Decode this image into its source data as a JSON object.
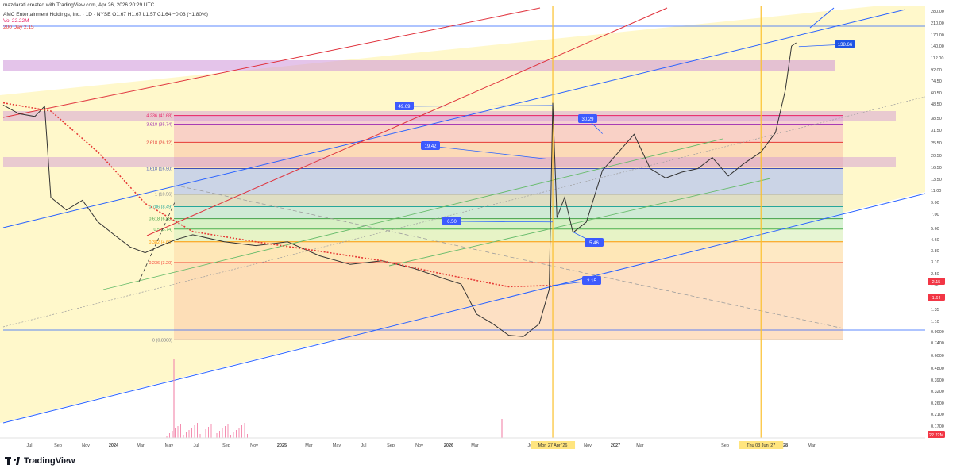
{
  "header": {
    "credit": "mazdarati created with TradingView.com, Apr 26, 2026 20:29 UTC",
    "symbol_line": "AMC Entertainment Holdings, Inc. · 1D · NYSE  O1.67 H1.67 L1.57 C1.64 −0.03 (−1.80%)",
    "vol_line": "Vol  22.22M",
    "ma_line": "200 Day  2.15"
  },
  "branding": {
    "name": "TradingView"
  },
  "colors": {
    "channel_blue": "#2962ff",
    "fib_red": "#e0323c",
    "price_line": "#333333",
    "ma_red": "#e53935",
    "highlight_yellow": "#fbc02d",
    "purple_band": "#ce93d8",
    "fill_yellow": "#fff7c2"
  },
  "chart_data": {
    "type": "line",
    "title": "AMC Entertainment Holdings, Inc. · 1D · NYSE",
    "y_scale": "log",
    "ylim": [
      0.15,
      280
    ],
    "x_range": [
      "2023-06-01",
      "2028-04-15"
    ],
    "y_tick_labels": [
      "280.00",
      "210.00",
      "170.00",
      "140.00",
      "112.00",
      "92.00",
      "74.50",
      "60.50",
      "48.50",
      "38.50",
      "31.50",
      "25.50",
      "20.50",
      "16.50",
      "13.50",
      "11.00",
      "9.00",
      "7.00",
      "5.60",
      "4.60",
      "3.80",
      "3.10",
      "2.50",
      "2.00",
      "1.64",
      "1.35",
      "1.10",
      "0.9000",
      "0.7400",
      "0.6000",
      "0.4800",
      "0.3900",
      "0.3200",
      "0.2600",
      "0.2100",
      "0.1700"
    ],
    "x_tick_labels": [
      "Jul",
      "Sep",
      "Nov",
      "2024",
      "Mar",
      "May",
      "Jul",
      "Sep",
      "Nov",
      "2025",
      "Mar",
      "May",
      "Jul",
      "Sep",
      "Nov",
      "2026",
      "Mar",
      "Jul",
      "Sep",
      "Nov",
      "2027",
      "Mar",
      "Sep",
      "Nov",
      "2028",
      "Mar"
    ],
    "price_badges": [
      {
        "label": "2.15",
        "value": 2.15
      },
      {
        "label": "1.64",
        "value": 1.64
      },
      {
        "label": "22.22M",
        "value": 0.1
      }
    ],
    "highlights": [
      {
        "label": "Mon 27 Apr '26",
        "date": "2026-04-27"
      },
      {
        "label": "Thu 03 Jun '27",
        "date": "2027-06-03"
      }
    ],
    "fib_levels": [
      {
        "label": "4.236 (41.68)",
        "value": 41.68,
        "color": "#e91e63"
      },
      {
        "label": "3.618 (35.74)",
        "value": 35.74,
        "color": "#9c27b0"
      },
      {
        "label": "2.618 (26.12)",
        "value": 26.12,
        "color": "#e53935"
      },
      {
        "label": "1.618 (16.50)",
        "value": 16.5,
        "color": "#3f51b5"
      },
      {
        "label": "1 (10.56)",
        "value": 10.56,
        "color": "#787b86"
      },
      {
        "label": "0.786 (8.49)",
        "value": 8.49,
        "color": "#26a69a"
      },
      {
        "label": "0.618 (6.88)",
        "value": 6.88,
        "color": "#43a047"
      },
      {
        "label": "0.5 (5.74)",
        "value": 5.74,
        "color": "#4caf50"
      },
      {
        "label": "0.382 (4.60)",
        "value": 4.6,
        "color": "#ff9800"
      },
      {
        "label": "0.236 (3.20)",
        "value": 3.2,
        "color": "#f44336"
      },
      {
        "label": "0 (0.8300)",
        "value": 0.83,
        "color": "#787b86"
      }
    ],
    "annotations": [
      {
        "label": "49.69",
        "date": "2026-04-27",
        "value": 49.69
      },
      {
        "label": "30.29",
        "date": "2026-08-01",
        "value": 30.29
      },
      {
        "label": "19.42",
        "date": "2026-04-20",
        "value": 19.42
      },
      {
        "label": "6.50",
        "date": "2026-04-27",
        "value": 6.5
      },
      {
        "label": "5.46",
        "date": "2026-06-05",
        "value": 5.46
      },
      {
        "label": "2.15",
        "date": "2026-04-27",
        "value": 2.15
      },
      {
        "label": "138.66",
        "date": "2027-08-15",
        "value": 138.66
      }
    ],
    "series": [
      {
        "name": "AMC",
        "points": [
          [
            "2023-06-01",
            50
          ],
          [
            "2023-07-01",
            43
          ],
          [
            "2023-08-01",
            41
          ],
          [
            "2023-08-20",
            49
          ],
          [
            "2023-09-01",
            10
          ],
          [
            "2023-10-01",
            8
          ],
          [
            "2023-11-01",
            9.5
          ],
          [
            "2023-12-01",
            6.5
          ],
          [
            "2024-01-01",
            5.2
          ],
          [
            "2024-02-01",
            4.2
          ],
          [
            "2024-03-01",
            3.8
          ],
          [
            "2024-04-01",
            4.3
          ],
          [
            "2024-05-01",
            4.8
          ],
          [
            "2024-06-01",
            5.2
          ],
          [
            "2024-08-01",
            4.6
          ],
          [
            "2024-10-01",
            4.3
          ],
          [
            "2024-12-01",
            4.6
          ],
          [
            "2025-02-01",
            3.6
          ],
          [
            "2025-04-01",
            3.1
          ],
          [
            "2025-06-01",
            3.3
          ],
          [
            "2025-08-01",
            2.9
          ],
          [
            "2025-10-01",
            2.4
          ],
          [
            "2025-11-01",
            2.2
          ],
          [
            "2025-12-01",
            1.3
          ],
          [
            "2026-01-01",
            1.1
          ],
          [
            "2026-02-01",
            0.9
          ],
          [
            "2026-03-01",
            0.88
          ],
          [
            "2026-04-01",
            1.1
          ],
          [
            "2026-04-20",
            2.0
          ],
          [
            "2026-04-27",
            52
          ],
          [
            "2026-05-05",
            7
          ],
          [
            "2026-05-20",
            10
          ],
          [
            "2026-06-05",
            5.4
          ],
          [
            "2026-07-01",
            6.5
          ],
          [
            "2026-08-01",
            16
          ],
          [
            "2026-09-01",
            22
          ],
          [
            "2026-10-01",
            30
          ],
          [
            "2026-11-01",
            16.5
          ],
          [
            "2026-12-01",
            14
          ],
          [
            "2027-01-01",
            15.5
          ],
          [
            "2027-02-01",
            16.5
          ],
          [
            "2027-03-01",
            20
          ],
          [
            "2027-04-01",
            14.5
          ],
          [
            "2027-05-01",
            18
          ],
          [
            "2027-06-03",
            22
          ],
          [
            "2027-07-01",
            31
          ],
          [
            "2027-07-20",
            65
          ],
          [
            "2027-08-01",
            140
          ],
          [
            "2027-08-10",
            148
          ]
        ]
      },
      {
        "name": "200 Day",
        "points": [
          [
            "2023-06-01",
            52
          ],
          [
            "2023-09-01",
            45
          ],
          [
            "2023-12-01",
            22
          ],
          [
            "2024-03-01",
            9
          ],
          [
            "2024-06-01",
            5.5
          ],
          [
            "2024-10-01",
            4.6
          ],
          [
            "2025-02-01",
            3.9
          ],
          [
            "2025-06-01",
            3.3
          ],
          [
            "2025-10-01",
            2.6
          ],
          [
            "2026-02-01",
            2.1
          ],
          [
            "2026-04-27",
            2.15
          ]
        ]
      }
    ]
  }
}
